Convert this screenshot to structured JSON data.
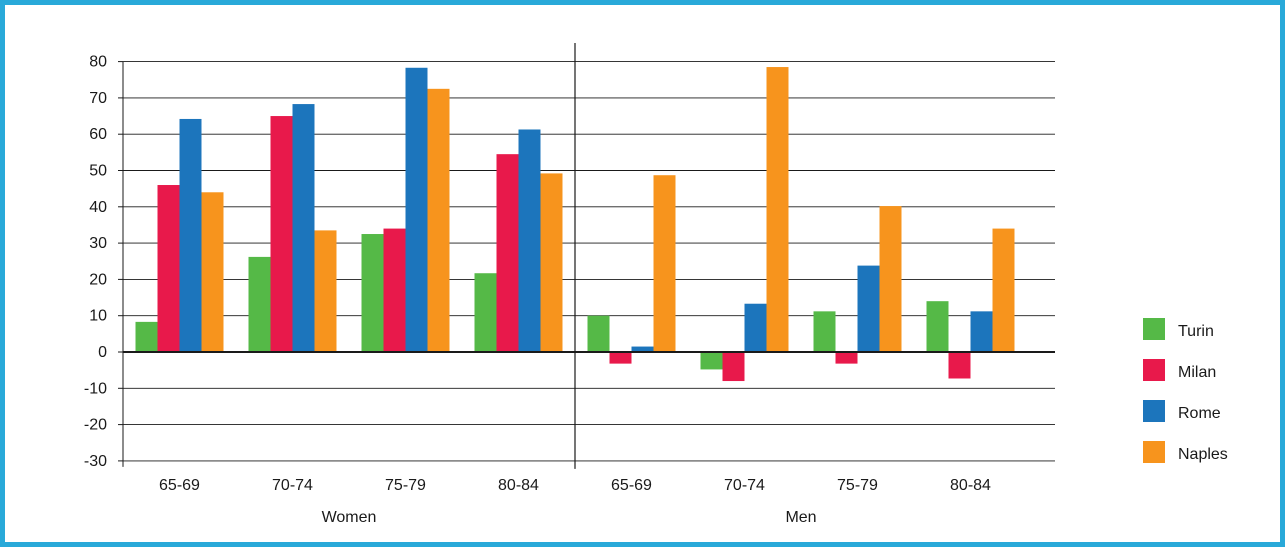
{
  "chart_data": {
    "type": "bar",
    "title": "",
    "ylabel": "",
    "ylim": [
      -30,
      80
    ],
    "yticks": [
      80,
      70,
      60,
      50,
      40,
      30,
      20,
      10,
      0,
      -10,
      -20,
      -30
    ],
    "grid": true,
    "legend_position": "right",
    "groups": [
      {
        "name": "Women",
        "categories": [
          "65-69",
          "70-74",
          "75-79",
          "80-84"
        ],
        "series": [
          {
            "name": "Turin",
            "values": [
              8.3,
              26.2,
              32.5,
              21.7
            ]
          },
          {
            "name": "Milan",
            "values": [
              46.0,
              65.0,
              34.0,
              54.5
            ]
          },
          {
            "name": "Rome",
            "values": [
              64.2,
              68.3,
              78.3,
              61.3
            ]
          },
          {
            "name": "Naples",
            "values": [
              44.0,
              33.5,
              72.5,
              49.2
            ]
          }
        ]
      },
      {
        "name": "Men",
        "categories": [
          "65-69",
          "70-74",
          "75-79",
          "80-84"
        ],
        "series": [
          {
            "name": "Turin",
            "values": [
              10.0,
              -4.8,
              11.2,
              14.0
            ]
          },
          {
            "name": "Milan",
            "values": [
              -3.2,
              -8.0,
              -3.2,
              -7.3
            ]
          },
          {
            "name": "Rome",
            "values": [
              1.5,
              13.3,
              23.8,
              11.2
            ]
          },
          {
            "name": "Naples",
            "values": [
              48.7,
              78.5,
              40.2,
              34.0
            ]
          }
        ]
      }
    ],
    "colors": {
      "Turin": "#55b947",
      "Milan": "#e8194b",
      "Rome": "#1c75bc",
      "Naples": "#f7941d",
      "frame": "#29a9d9"
    }
  }
}
